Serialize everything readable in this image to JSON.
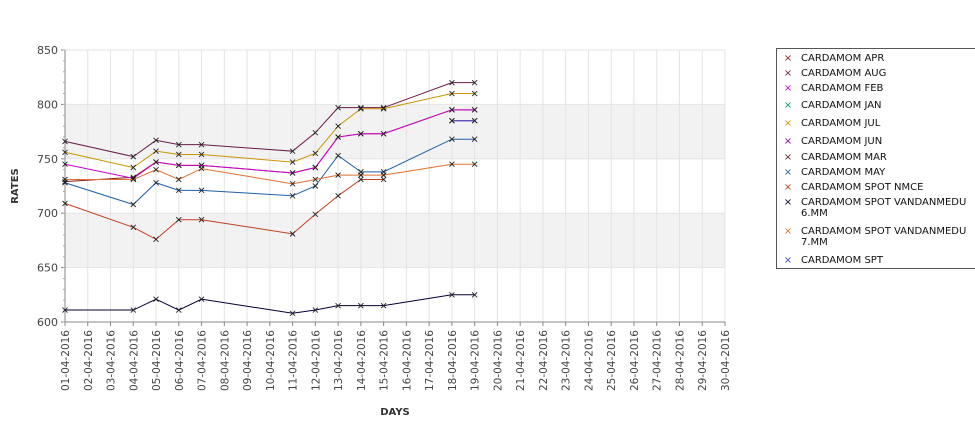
{
  "chart_data": {
    "type": "line",
    "xlabel": "DAYS",
    "ylabel": "RATES",
    "ylim": [
      600,
      850
    ],
    "yticks": [
      600,
      650,
      700,
      750,
      800,
      850
    ],
    "categories": [
      "01-04-2016",
      "02-04-2016",
      "03-04-2016",
      "04-04-2016",
      "05-04-2016",
      "06-04-2016",
      "07-04-2016",
      "08-04-2016",
      "09-04-2016",
      "10-04-2016",
      "11-04-2016",
      "12-04-2016",
      "13-04-2016",
      "14-04-2016",
      "15-04-2016",
      "16-04-2016",
      "17-04-2016",
      "18-04-2016",
      "19-04-2016",
      "20-04-2016",
      "21-04-2016",
      "22-04-2016",
      "23-04-2016",
      "24-04-2016",
      "25-04-2016",
      "26-04-2016",
      "27-04-2016",
      "28-04-2016",
      "29-04-2016",
      "30-04-2016"
    ],
    "grid": true,
    "legend_position": "right",
    "series": [
      {
        "name": "CARDAMOM APR",
        "color": "#8b1a1a",
        "points": [
          [
            "01-04-2016",
            729
          ],
          [
            "04-04-2016",
            733
          ],
          [
            "05-04-2016",
            747
          ],
          [
            "06-04-2016",
            744
          ],
          [
            "07-04-2016",
            744
          ],
          [
            "11-04-2016",
            737
          ],
          [
            "12-04-2016",
            742
          ],
          [
            "13-04-2016",
            770
          ],
          [
            "14-04-2016",
            773
          ],
          [
            "15-04-2016",
            773
          ],
          [
            "18-04-2016",
            795
          ],
          [
            "19-04-2016",
            795
          ]
        ]
      },
      {
        "name": "CARDAMOM AUG",
        "color": "#6a1b4a",
        "points": [
          [
            "01-04-2016",
            766
          ],
          [
            "04-04-2016",
            752
          ],
          [
            "05-04-2016",
            767
          ],
          [
            "06-04-2016",
            763
          ],
          [
            "07-04-2016",
            763
          ],
          [
            "11-04-2016",
            757
          ],
          [
            "12-04-2016",
            774
          ],
          [
            "13-04-2016",
            797
          ],
          [
            "14-04-2016",
            797
          ],
          [
            "15-04-2016",
            797
          ],
          [
            "18-04-2016",
            820
          ],
          [
            "19-04-2016",
            820
          ]
        ]
      },
      {
        "name": "CARDAMOM FEB",
        "color": "#cc00cc",
        "points": [
          [
            "01-04-2016",
            745
          ],
          [
            "04-04-2016",
            732
          ],
          [
            "05-04-2016",
            747
          ],
          [
            "06-04-2016",
            744
          ],
          [
            "07-04-2016",
            744
          ],
          [
            "11-04-2016",
            737
          ],
          [
            "12-04-2016",
            742
          ],
          [
            "13-04-2016",
            770
          ],
          [
            "14-04-2016",
            773
          ],
          [
            "15-04-2016",
            773
          ],
          [
            "18-04-2016",
            795
          ],
          [
            "19-04-2016",
            795
          ]
        ]
      },
      {
        "name": "CARDAMOM JAN",
        "color": "#009977",
        "points": []
      },
      {
        "name": "CARDAMOM JUL",
        "color": "#c89600",
        "points": [
          [
            "01-04-2016",
            756
          ],
          [
            "04-04-2016",
            742
          ],
          [
            "05-04-2016",
            757
          ],
          [
            "06-04-2016",
            754
          ],
          [
            "07-04-2016",
            754
          ],
          [
            "11-04-2016",
            747
          ],
          [
            "12-04-2016",
            755
          ],
          [
            "13-04-2016",
            780
          ],
          [
            "14-04-2016",
            796
          ],
          [
            "15-04-2016",
            796
          ],
          [
            "18-04-2016",
            810
          ],
          [
            "19-04-2016",
            810
          ]
        ]
      },
      {
        "name": "CARDAMOM JUN",
        "color": "#8800aa",
        "points": [
          [
            "18-04-2016",
            785
          ],
          [
            "19-04-2016",
            785
          ]
        ]
      },
      {
        "name": "CARDAMOM MAR",
        "color": "#5a2a2a",
        "points": []
      },
      {
        "name": "CARDAMOM MAY",
        "color": "#1f5fa8",
        "points": [
          [
            "01-04-2016",
            728
          ],
          [
            "04-04-2016",
            708
          ],
          [
            "05-04-2016",
            728
          ],
          [
            "06-04-2016",
            721
          ],
          [
            "07-04-2016",
            721
          ],
          [
            "11-04-2016",
            716
          ],
          [
            "12-04-2016",
            725
          ],
          [
            "13-04-2016",
            753
          ],
          [
            "14-04-2016",
            738
          ],
          [
            "15-04-2016",
            738
          ],
          [
            "18-04-2016",
            768
          ],
          [
            "19-04-2016",
            768
          ]
        ]
      },
      {
        "name": "CARDAMOM SPOT NMCE",
        "color": "#c04020",
        "points": [
          [
            "01-04-2016",
            709
          ],
          [
            "04-04-2016",
            687
          ],
          [
            "05-04-2016",
            676
          ],
          [
            "06-04-2016",
            694
          ],
          [
            "07-04-2016",
            694
          ],
          [
            "11-04-2016",
            681
          ],
          [
            "12-04-2016",
            699
          ],
          [
            "13-04-2016",
            716
          ],
          [
            "14-04-2016",
            731
          ],
          [
            "15-04-2016",
            731
          ]
        ]
      },
      {
        "name": "CARDAMOM SPOT VANDANMEDU\n6.MM",
        "color": "#000033",
        "points": [
          [
            "01-04-2016",
            611
          ],
          [
            "04-04-2016",
            611
          ],
          [
            "05-04-2016",
            621
          ],
          [
            "06-04-2016",
            611
          ],
          [
            "07-04-2016",
            621
          ],
          [
            "11-04-2016",
            608
          ],
          [
            "12-04-2016",
            611
          ],
          [
            "13-04-2016",
            615
          ],
          [
            "14-04-2016",
            615
          ],
          [
            "15-04-2016",
            615
          ],
          [
            "18-04-2016",
            625
          ],
          [
            "19-04-2016",
            625
          ]
        ]
      },
      {
        "name": "CARDAMOM SPOT VANDANMEDU\n7.MM",
        "color": "#e07030",
        "points": [
          [
            "01-04-2016",
            731
          ],
          [
            "04-04-2016",
            731
          ],
          [
            "05-04-2016",
            740
          ],
          [
            "06-04-2016",
            731
          ],
          [
            "07-04-2016",
            741
          ],
          [
            "11-04-2016",
            727
          ],
          [
            "12-04-2016",
            731
          ],
          [
            "13-04-2016",
            735
          ],
          [
            "14-04-2016",
            735
          ],
          [
            "15-04-2016",
            735
          ],
          [
            "18-04-2016",
            745
          ],
          [
            "19-04-2016",
            745
          ]
        ]
      },
      {
        "name": "CARDAMOM SPT",
        "color": "#4444bb",
        "points": [
          [
            "18-04-2016",
            785
          ],
          [
            "19-04-2016",
            785
          ]
        ]
      }
    ]
  }
}
